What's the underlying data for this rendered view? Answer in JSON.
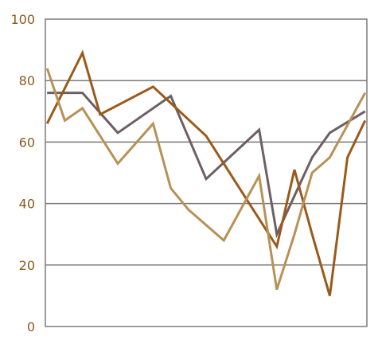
{
  "chart_data": {
    "type": "line",
    "title": "",
    "xlabel": "",
    "ylabel": "",
    "x": [
      1,
      2,
      3,
      4,
      5,
      6,
      7,
      8,
      9,
      10,
      11,
      12,
      13,
      14,
      15,
      16,
      17,
      18,
      19
    ],
    "xlim": [
      0.9,
      19.1
    ],
    "ylim": [
      0,
      100
    ],
    "y_ticks": [
      "0",
      "20",
      "40",
      "60",
      "80",
      "100"
    ],
    "grid": {
      "horizontal": true,
      "vertical": false
    },
    "legend": "none",
    "colors": {
      "axis_text": "#8a5a1c",
      "grid": "#7a7a7a",
      "frame": "#7a7a7a"
    },
    "series": [
      {
        "color": "#6e5f62",
        "x": [
          1,
          3,
          5,
          8,
          10,
          13,
          14,
          16,
          17,
          19
        ],
        "values": [
          76,
          76,
          63,
          75,
          48,
          64,
          30,
          55,
          63,
          70
        ]
      },
      {
        "color": "#9b5a1b",
        "x": [
          1,
          3,
          4,
          7,
          10,
          12,
          14,
          15,
          16,
          17,
          18,
          19
        ],
        "values": [
          66,
          89,
          69,
          78,
          62,
          44,
          26,
          51,
          30,
          10,
          55,
          67
        ]
      },
      {
        "color": "#b89156",
        "x": [
          1,
          2,
          3,
          5,
          7,
          8,
          9,
          11,
          13,
          14,
          15,
          16,
          17,
          19
        ],
        "values": [
          84,
          67,
          71,
          53,
          66,
          45,
          38,
          28,
          49,
          12,
          30,
          50,
          55,
          76
        ]
      }
    ]
  }
}
